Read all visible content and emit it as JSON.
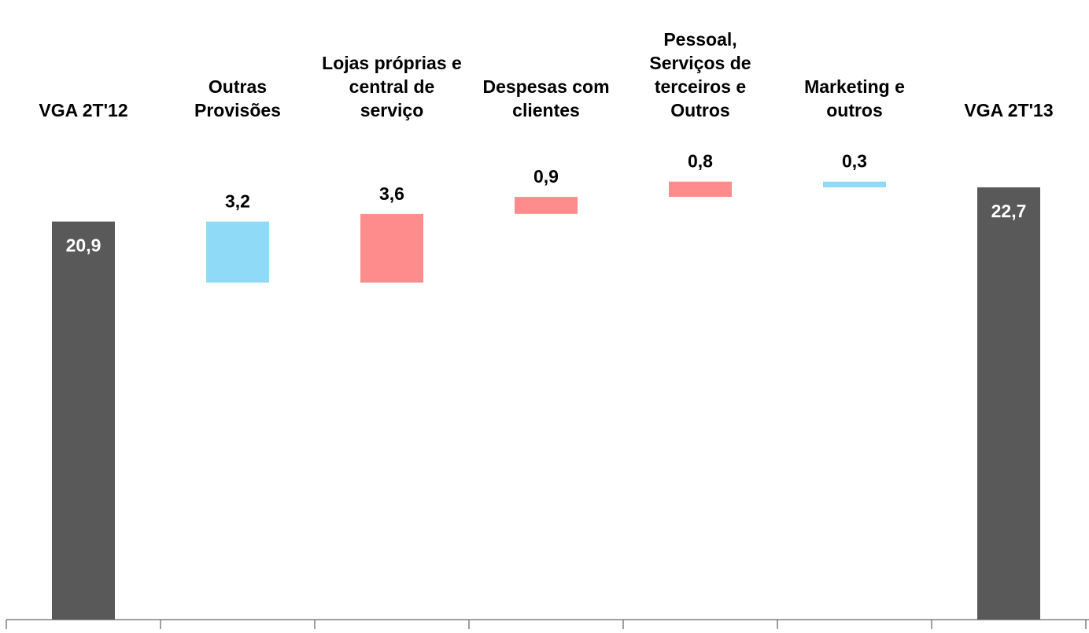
{
  "chart_data": {
    "type": "waterfall",
    "categories": [
      "VGA 2T'12",
      "Outras Provisões",
      "Lojas próprias e central de serviço",
      "Despesas com clientes",
      "Pessoal, Serviços de terceiros e Outros",
      "Marketing e outros",
      "VGA 2T'13"
    ],
    "values": [
      20.9,
      -3.2,
      3.6,
      0.9,
      0.8,
      -0.3,
      22.7
    ],
    "value_labels": [
      "20,9",
      "3,2",
      "3,6",
      "0,9",
      "0,8",
      "0,3",
      "22,7"
    ],
    "colors": [
      "#595959",
      "#8fdaf7",
      "#ff8c8c",
      "#ff8c8c",
      "#ff8c8c",
      "#8fdaf7",
      "#595959"
    ],
    "totals": [
      true,
      false,
      false,
      false,
      false,
      false,
      true
    ],
    "ylim": [
      0,
      32
    ]
  }
}
